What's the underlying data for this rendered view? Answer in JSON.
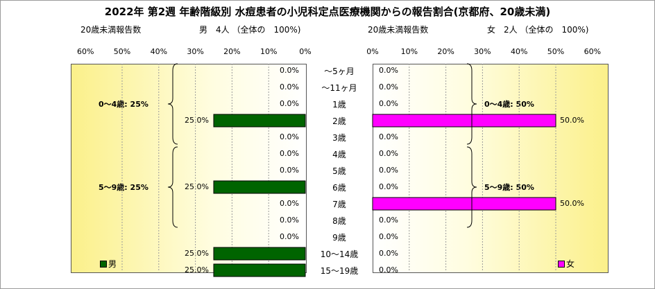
{
  "title": "2022年 第2週 年齢階級別 水痘患者の小児科定点医療機関からの報告割合(京都府、20歳未満)",
  "left_header": {
    "count_label": "20歳未満報告数",
    "summary": "男　4人 （全体の　100%)"
  },
  "right_header": {
    "count_label": "20歳未満報告数",
    "summary": "女　2人 （全体の　100%)"
  },
  "left_ticks": [
    "60%",
    "50%",
    "40%",
    "30%",
    "20%",
    "10%",
    "0%"
  ],
  "right_ticks": [
    "0%",
    "10%",
    "20%",
    "30%",
    "40%",
    "50%",
    "60%"
  ],
  "colors": {
    "male": "#006400",
    "female": "#ff00ff"
  },
  "groups_male": [
    {
      "label": "0～4歳: 25%",
      "from": 0,
      "to": 4
    },
    {
      "label": "5～9歳: 25%",
      "from": 5,
      "to": 9
    }
  ],
  "groups_female": [
    {
      "label": "0～4歳: 50%",
      "from": 0,
      "to": 4
    },
    {
      "label": "5～9歳: 50%",
      "from": 5,
      "to": 9
    }
  ],
  "legend": {
    "male": "男",
    "female": "女"
  },
  "chart_data": {
    "type": "bar",
    "orientation": "horizontal-butterfly",
    "categories": [
      "～5ヶ月",
      "～11ヶ月",
      "1歳",
      "2歳",
      "3歳",
      "4歳",
      "5歳",
      "6歳",
      "7歳",
      "8歳",
      "9歳",
      "10～14歳",
      "15～19歳"
    ],
    "series": [
      {
        "name": "男",
        "values": [
          0,
          0,
          0,
          25,
          0,
          0,
          0,
          25,
          0,
          0,
          0,
          25,
          25
        ],
        "labels": [
          "0.0%",
          "0.0%",
          "0.0%",
          "25.0%",
          "0.0%",
          "0.0%",
          "0.0%",
          "25.0%",
          "0.0%",
          "0.0%",
          "0.0%",
          "25.0%",
          "25.0%"
        ]
      },
      {
        "name": "女",
        "values": [
          0,
          0,
          0,
          50,
          0,
          0,
          0,
          0,
          50,
          0,
          0,
          0,
          0
        ],
        "labels": [
          "0.0%",
          "0.0%",
          "0.0%",
          "50.0%",
          "0.0%",
          "0.0%",
          "0.0%",
          "0.0%",
          "50.0%",
          "0.0%",
          "0.0%",
          "0.0%",
          "0.0%"
        ]
      }
    ],
    "xlim": [
      0,
      60
    ],
    "grid": true
  }
}
